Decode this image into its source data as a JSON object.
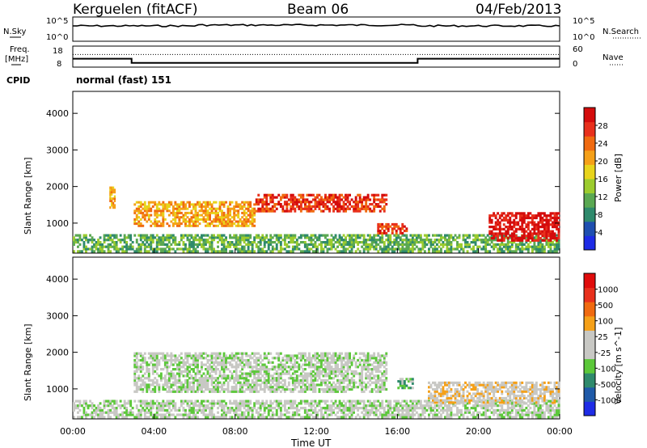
{
  "header": {
    "title": "Kerguelen (fitACF)",
    "beam": "Beam 06",
    "date": "04/Feb/2013"
  },
  "sky_panel": {
    "left_label": "N.Sky",
    "right_label": "N.Search",
    "left_ticks": [
      "10^5",
      "10^0"
    ],
    "right_ticks": [
      "10^5",
      "10^0"
    ]
  },
  "freq_panel": {
    "left_label_1": "Freq.",
    "left_label_2": "[MHz]",
    "right_label": "Nave",
    "left_ticks": [
      "18",
      "8"
    ],
    "right_ticks": [
      "60",
      "0"
    ],
    "step_segments": [
      {
        "t_start_h": 0.0,
        "t_end_h": 2.9,
        "freq_mhz": 12
      },
      {
        "t_start_h": 2.9,
        "t_end_h": 17.0,
        "freq_mhz": 10
      },
      {
        "t_start_h": 17.0,
        "t_end_h": 24.0,
        "freq_mhz": 12
      }
    ],
    "nave_level": 36
  },
  "cpid": {
    "label": "CPID",
    "value": "normal (fast) 151"
  },
  "chart_data": [
    {
      "type": "heatmap",
      "title": "",
      "xlabel": "Time UT",
      "ylabel": "Slant Range [km]",
      "xlim_hours": [
        0,
        24
      ],
      "ylim": [
        180,
        4600
      ],
      "x_tick_labels": [
        "00:00",
        "04:00",
        "08:00",
        "12:00",
        "16:00",
        "20:00",
        "00:00"
      ],
      "y_ticks": [
        1000,
        2000,
        3000,
        4000
      ],
      "colorbar": {
        "label": "Power [dB]",
        "ticks": [
          "4",
          "8",
          "12",
          "16",
          "20",
          "24",
          "28"
        ],
        "colors": [
          "#1e2ce6",
          "#1f4fb0",
          "#2f8a6c",
          "#5aa852",
          "#9ccc2e",
          "#e8d41c",
          "#f5a018",
          "#f06a10",
          "#e8301c",
          "#d40c0c"
        ]
      },
      "echo_bands": [
        {
          "t0": 0.0,
          "t1": 24.0,
          "r0": 200,
          "r1": 700,
          "level": 3
        },
        {
          "t0": 1.8,
          "t1": 2.1,
          "r0": 1400,
          "r1": 2000,
          "level": 6
        },
        {
          "t0": 3.0,
          "t1": 9.0,
          "r0": 900,
          "r1": 1600,
          "level": 6
        },
        {
          "t0": 9.0,
          "t1": 15.5,
          "r0": 1300,
          "r1": 1800,
          "level": 8
        },
        {
          "t0": 15.0,
          "t1": 16.5,
          "r0": 700,
          "r1": 1000,
          "level": 8
        },
        {
          "t0": 20.5,
          "t1": 24.0,
          "r0": 500,
          "r1": 1300,
          "level": 9
        }
      ]
    },
    {
      "type": "heatmap",
      "title": "",
      "xlabel": "Time UT",
      "ylabel": "Slant Range [km]",
      "xlim_hours": [
        0,
        24
      ],
      "ylim": [
        180,
        4600
      ],
      "x_tick_labels": [
        "00:00",
        "04:00",
        "08:00",
        "12:00",
        "16:00",
        "20:00",
        "00:00"
      ],
      "y_ticks": [
        1000,
        2000,
        3000,
        4000
      ],
      "colorbar": {
        "label": "Velocity [m s^-1]",
        "ticks": [
          "1000",
          "500",
          "100",
          "25",
          "-25",
          "-100",
          "-500",
          "-1000"
        ],
        "colors": [
          "#1e2ce6",
          "#1f5aa8",
          "#2f8a6c",
          "#5cc83a",
          "#c8c8c4",
          "#c8c8c4",
          "#f5a018",
          "#f06a10",
          "#e8301c",
          "#e00c0c"
        ]
      },
      "echo_bands": [
        {
          "t0": 0.0,
          "t1": 24.0,
          "r0": 200,
          "r1": 700,
          "level": 4
        },
        {
          "t0": 3.0,
          "t1": 15.5,
          "r0": 900,
          "r1": 2000,
          "level": 4
        },
        {
          "t0": 16.0,
          "t1": 16.8,
          "r0": 1000,
          "r1": 1300,
          "level": 3
        },
        {
          "t0": 17.5,
          "t1": 24.0,
          "r0": 600,
          "r1": 1200,
          "level": 5
        }
      ]
    }
  ]
}
